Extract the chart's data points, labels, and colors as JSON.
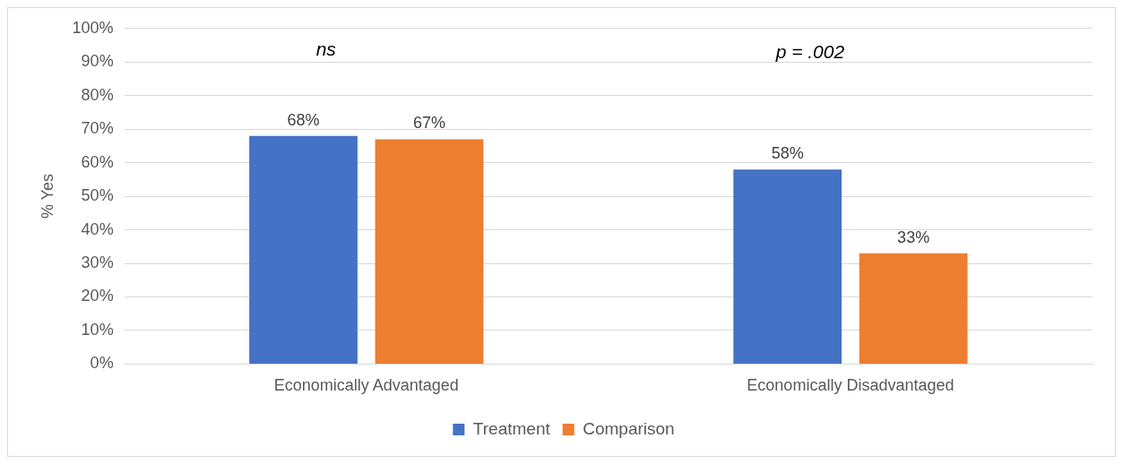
{
  "chart_data": {
    "type": "bar",
    "ylabel": "% Yes",
    "categories": [
      "Economically Advantaged",
      "Economically Disadvantaged"
    ],
    "series": [
      {
        "name": "Treatment",
        "color": "#4472c4",
        "values": [
          68,
          58
        ],
        "value_labels": [
          "68%",
          "58%"
        ]
      },
      {
        "name": "Comparison",
        "color": "#ed7d31",
        "values": [
          67,
          33
        ],
        "value_labels": [
          "67%",
          "33%"
        ]
      }
    ],
    "ylim": [
      0,
      100
    ],
    "yticks": [
      {
        "value": 0,
        "label": "0%"
      },
      {
        "value": 10,
        "label": "10%"
      },
      {
        "value": 20,
        "label": "20%"
      },
      {
        "value": 30,
        "label": "30%"
      },
      {
        "value": 40,
        "label": "40%"
      },
      {
        "value": 50,
        "label": "50%"
      },
      {
        "value": 60,
        "label": "60%"
      },
      {
        "value": 70,
        "label": "70%"
      },
      {
        "value": 80,
        "label": "80%"
      },
      {
        "value": 90,
        "label": "90%"
      },
      {
        "value": 100,
        "label": "100%"
      }
    ],
    "grid": "y",
    "legend": "bottom",
    "annotations": [
      "ns",
      "p = .002"
    ]
  }
}
